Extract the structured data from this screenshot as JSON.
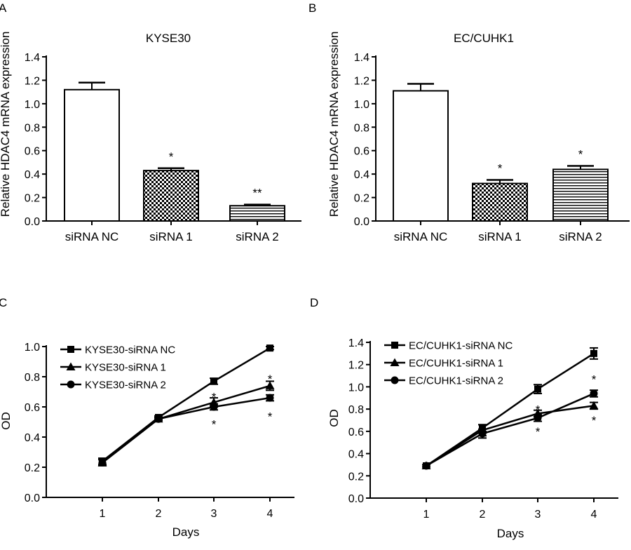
{
  "chart_data": [
    {
      "panel": "A",
      "type": "bar",
      "title": "KYSE30",
      "xlabel": "",
      "ylabel": "Relative HDAC4 mRNA expression",
      "ylim": [
        0,
        1.4
      ],
      "yticks": [
        "0.0",
        "0.2",
        "0.4",
        "0.6",
        "0.8",
        "1.0",
        "1.2",
        "1.4"
      ],
      "categories": [
        "siRNA NC",
        "siRNA 1",
        "siRNA 2"
      ],
      "values": [
        1.12,
        0.43,
        0.13
      ],
      "errors": [
        0.06,
        0.02,
        0.01
      ],
      "fills": [
        "plain",
        "checker",
        "hlines"
      ],
      "significance": [
        "",
        "*",
        "**"
      ]
    },
    {
      "panel": "B",
      "type": "bar",
      "title": "EC/CUHK1",
      "xlabel": "",
      "ylabel": "Relative HDAC4 mRNA expression",
      "ylim": [
        0,
        1.4
      ],
      "yticks": [
        "0.0",
        "0.2",
        "0.4",
        "0.6",
        "0.8",
        "1.0",
        "1.2",
        "1.4"
      ],
      "categories": [
        "siRNA NC",
        "siRNA 1",
        "siRNA 2"
      ],
      "values": [
        1.11,
        0.32,
        0.44
      ],
      "errors": [
        0.06,
        0.03,
        0.03
      ],
      "fills": [
        "plain",
        "checker",
        "hlines"
      ],
      "significance": [
        "",
        "*",
        "*"
      ]
    },
    {
      "panel": "C",
      "type": "line",
      "title": "",
      "xlabel": "Days",
      "ylabel": "OD",
      "ylim": [
        0,
        1.0
      ],
      "yticks": [
        "0.0",
        "0.2",
        "0.4",
        "0.6",
        "0.8",
        "1.0"
      ],
      "xticks": [
        "1",
        "2",
        "3",
        "4"
      ],
      "x": [
        1,
        2,
        3,
        4
      ],
      "legend_position": "top-left",
      "series": [
        {
          "name": "KYSE30-siRNA NC",
          "marker": "square",
          "values": [
            0.24,
            0.53,
            0.77,
            0.99
          ],
          "errors": [
            0.02,
            0.01,
            0.02,
            0.01
          ]
        },
        {
          "name": "KYSE30-siRNA 1",
          "marker": "triangle",
          "values": [
            0.23,
            0.52,
            0.63,
            0.74
          ],
          "errors": [
            0.02,
            0.01,
            0.03,
            0.03
          ]
        },
        {
          "name": "KYSE30-siRNA 2",
          "marker": "circle",
          "values": [
            0.23,
            0.52,
            0.6,
            0.66
          ],
          "errors": [
            0.02,
            0.01,
            0.02,
            0.02
          ]
        }
      ],
      "annotations": [
        {
          "x": 3,
          "y": 0.69,
          "text": "*"
        },
        {
          "x": 3,
          "y": 0.51,
          "text": "*"
        },
        {
          "x": 4,
          "y": 0.81,
          "text": "*"
        },
        {
          "x": 4,
          "y": 0.56,
          "text": "*"
        }
      ]
    },
    {
      "panel": "D",
      "type": "line",
      "title": "",
      "xlabel": "Days",
      "ylabel": "OD",
      "ylim": [
        0,
        1.4
      ],
      "yticks": [
        "0.0",
        "0.2",
        "0.4",
        "0.6",
        "0.8",
        "1.0",
        "1.2",
        "1.4"
      ],
      "xticks": [
        "1",
        "2",
        "3",
        "4"
      ],
      "x": [
        1,
        2,
        3,
        4
      ],
      "legend_position": "top-left",
      "series": [
        {
          "name": "EC/CUHK1-siRNA NC",
          "marker": "square",
          "values": [
            0.29,
            0.63,
            0.98,
            1.3
          ],
          "errors": [
            0.01,
            0.03,
            0.04,
            0.05
          ]
        },
        {
          "name": "EC/CUHK1-siRNA 1",
          "marker": "triangle",
          "values": [
            0.29,
            0.61,
            0.76,
            0.83
          ],
          "errors": [
            0.01,
            0.05,
            0.03,
            0.03
          ]
        },
        {
          "name": "EC/CUHK1-siRNA 2",
          "marker": "circle",
          "values": [
            0.29,
            0.58,
            0.72,
            0.94
          ],
          "errors": [
            0.01,
            0.04,
            0.03,
            0.03
          ]
        }
      ],
      "annotations": [
        {
          "x": 3,
          "y": 0.83,
          "text": "*"
        },
        {
          "x": 3,
          "y": 0.63,
          "text": "*"
        },
        {
          "x": 4,
          "y": 1.1,
          "text": "*"
        },
        {
          "x": 4,
          "y": 0.73,
          "text": "*"
        }
      ]
    }
  ]
}
